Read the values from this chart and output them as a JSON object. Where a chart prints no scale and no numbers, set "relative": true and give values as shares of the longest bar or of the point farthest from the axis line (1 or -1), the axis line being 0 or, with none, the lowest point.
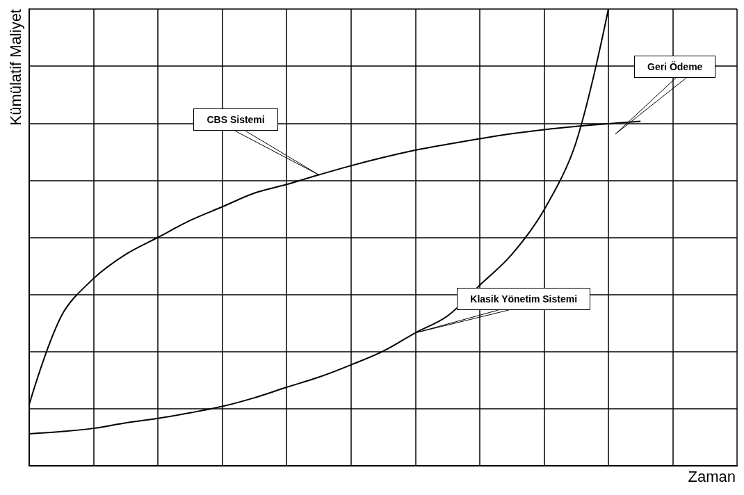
{
  "chart_data": {
    "type": "line",
    "relative": true,
    "xlabel": "Zaman",
    "ylabel": "Kümülatif Maliyet",
    "categories": [
      null,
      null,
      null,
      null,
      null,
      null,
      null,
      null,
      null,
      null,
      null,
      null,
      null,
      null,
      null,
      null,
      null,
      null,
      null,
      null,
      null,
      null,
      null
    ],
    "series": [
      {
        "name": "CBS Sistemi",
        "color": "#000000",
        "values": [
          0.134,
          0.328,
          0.41,
          0.463,
          0.5,
          0.537,
          0.567,
          0.597,
          0.616,
          0.637,
          0.657,
          0.675,
          0.691,
          0.704,
          0.716,
          0.727,
          0.736,
          0.743,
          0.749,
          0.754,
          null,
          null,
          null
        ]
      },
      {
        "name": "Klasik Yönetim Sistemi",
        "color": "#000000",
        "values": [
          0.07,
          0.075,
          0.082,
          0.094,
          0.104,
          0.116,
          0.13,
          0.149,
          0.172,
          0.194,
          0.221,
          0.251,
          0.291,
          0.328,
          0.395,
          0.463,
          0.56,
          0.709,
          1.0,
          null,
          null,
          null,
          null
        ]
      }
    ],
    "annotations": [
      "Geri Ödeme"
    ],
    "grid": true,
    "legend": false,
    "marker": "none",
    "line_style": "solid"
  }
}
